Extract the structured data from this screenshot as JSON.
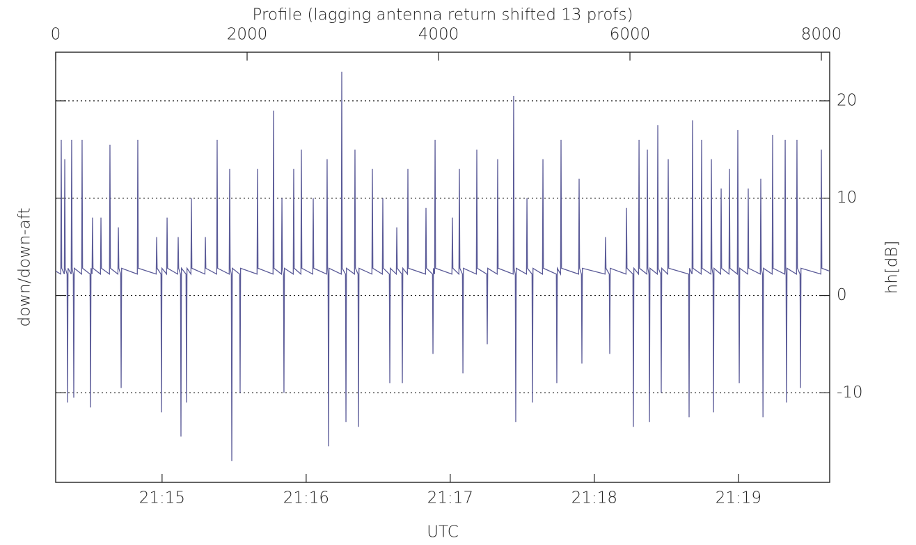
{
  "chart_data": {
    "type": "line",
    "title": "Profile (lagging antenna return shifted 13 profs)",
    "x_label": "UTC",
    "y_label": "down/down-aft",
    "y2_label": "hh[dB]",
    "xlim": [
      0,
      8087
    ],
    "xticks": [
      0,
      2000,
      4000,
      6000,
      8000
    ],
    "time_lim": [
      76455.7,
      76778
    ],
    "time_ticks": [
      {
        "value": 76500,
        "label": "21:15"
      },
      {
        "value": 76560,
        "label": "21:16"
      },
      {
        "value": 76620,
        "label": "21:17"
      },
      {
        "value": 76680,
        "label": "21:18"
      },
      {
        "value": 76740,
        "label": "21:19"
      }
    ],
    "ylim": [
      -19.2,
      25
    ],
    "yticks": [
      -10,
      0,
      10,
      20
    ],
    "grid": true,
    "x": [
      0,
      53,
      58,
      63,
      90,
      95,
      100,
      119,
      124,
      129,
      162,
      167,
      172,
      184,
      189,
      194,
      271,
      276,
      281,
      359,
      364,
      369,
      380,
      385,
      390,
      468,
      473,
      478,
      562,
      567,
      572,
      650,
      655,
      660,
      679,
      684,
      689,
      853,
      858,
      863,
      1050,
      1055,
      1060,
      1100,
      1105,
      1110,
      1159,
      1164,
      1169,
      1275,
      1280,
      1285,
      1304,
      1309,
      1314,
      1362,
      1367,
      1372,
      1413,
      1418,
      1423,
      1559,
      1564,
      1569,
      1682,
      1687,
      1692,
      1813,
      1818,
      1823,
      1835,
      1840,
      1845,
      1922,
      1927,
      1932,
      2104,
      2109,
      2114,
      2271,
      2276,
      2281,
      2359,
      2364,
      2369,
      2380,
      2385,
      2390,
      2482,
      2487,
      2492,
      2562,
      2567,
      2572,
      2686,
      2691,
      2696,
      2831,
      2836,
      2841,
      2846,
      2851,
      2856,
      2984,
      2989,
      2994,
      3028,
      3033,
      3038,
      3122,
      3127,
      3132,
      3159,
      3164,
      3169,
      3304,
      3309,
      3314,
      3413,
      3418,
      3423,
      3486,
      3491,
      3496,
      3559,
      3564,
      3569,
      3617,
      3622,
      3627,
      3675,
      3680,
      3685,
      3864,
      3869,
      3874,
      3937,
      3942,
      3947,
      3959,
      3964,
      3969,
      4140,
      4145,
      4150,
      4213,
      4218,
      4223,
      4250,
      4255,
      4260,
      4395,
      4400,
      4405,
      4504,
      4509,
      4514,
      4613,
      4618,
      4623,
      4780,
      4785,
      4790,
      4802,
      4807,
      4812,
      4919,
      4924,
      4929,
      4977,
      4982,
      4987,
      5086,
      5091,
      5096,
      5231,
      5236,
      5241,
      5275,
      5280,
      5285,
      5464,
      5469,
      5474,
      5493,
      5498,
      5503,
      5740,
      5745,
      5750,
      5784,
      5789,
      5794,
      5959,
      5964,
      5969,
      6031,
      6036,
      6041,
      6090,
      6095,
      6100,
      6177,
      6182,
      6187,
      6199,
      6204,
      6209,
      6286,
      6291,
      6296,
      6322,
      6327,
      6332,
      6395,
      6400,
      6405,
      6613,
      6618,
      6623,
      6649,
      6654,
      6659,
      6744,
      6749,
      6754,
      6846,
      6851,
      6856,
      6868,
      6873,
      6878,
      6948,
      6953,
      6958,
      7035,
      7040,
      7045,
      7122,
      7127,
      7132,
      7137,
      7142,
      7147,
      7231,
      7236,
      7241,
      7362,
      7367,
      7372,
      7385,
      7390,
      7395,
      7486,
      7491,
      7496,
      7617,
      7622,
      7627,
      7631,
      7636,
      7641,
      7740,
      7745,
      7750,
      7777,
      7782,
      7787,
      7995,
      8000,
      8005,
      8087
    ],
    "series": [
      {
        "color": "#5b5b98",
        "values": [
          2.5,
          2.2,
          16,
          2.8,
          2.2,
          14,
          2.8,
          2.2,
          -11,
          2.8,
          2.2,
          16,
          2.8,
          2.2,
          -10.5,
          2.8,
          2.2,
          16,
          2.8,
          2.2,
          -11.5,
          2.8,
          2.2,
          8,
          2.8,
          2.2,
          8,
          2.8,
          2.2,
          15.5,
          2.8,
          2.2,
          7,
          2.8,
          2.2,
          -9.5,
          2.8,
          2.2,
          16,
          2.8,
          2.2,
          6,
          2.8,
          2.2,
          -12,
          2.8,
          2.2,
          8,
          2.8,
          2.2,
          6,
          2.8,
          2.2,
          -14.5,
          2.8,
          2.2,
          -11,
          2.8,
          2.2,
          10,
          2.8,
          2.2,
          6,
          2.8,
          2.2,
          16,
          2.8,
          2.2,
          13,
          2.8,
          2.2,
          -17,
          2.8,
          2.2,
          -10,
          2.8,
          2.2,
          13,
          2.8,
          2.2,
          19,
          2.8,
          2.2,
          10,
          2.8,
          2.2,
          -10,
          2.8,
          2.2,
          13,
          2.8,
          2.2,
          15,
          2.8,
          2.2,
          10,
          2.8,
          2.2,
          14,
          2.8,
          2.2,
          -15.5,
          2.8,
          2.2,
          23,
          2.8,
          2.2,
          -13,
          2.8,
          2.2,
          15,
          2.8,
          2.2,
          -13.5,
          2.8,
          2.2,
          13,
          2.8,
          2.2,
          10,
          2.8,
          2.2,
          -9,
          2.8,
          2.2,
          7,
          2.8,
          2.2,
          -9,
          2.8,
          2.2,
          13,
          2.8,
          2.2,
          9,
          2.8,
          2.2,
          -6,
          2.8,
          2.2,
          16,
          2.8,
          2.2,
          8,
          2.8,
          2.2,
          13,
          2.8,
          2.2,
          -8,
          2.8,
          2.2,
          15,
          2.8,
          2.2,
          -5,
          2.8,
          2.2,
          14,
          2.8,
          2.2,
          20.5,
          2.8,
          2.2,
          -13,
          2.8,
          2.2,
          10,
          2.8,
          2.2,
          -11,
          2.8,
          2.2,
          14,
          2.8,
          2.2,
          -9,
          2.8,
          2.2,
          16,
          2.8,
          2.2,
          12,
          2.8,
          2.2,
          -7,
          2.8,
          2.2,
          6,
          2.8,
          2.2,
          -6,
          2.8,
          2.2,
          9,
          2.8,
          2.2,
          -13.5,
          2.8,
          2.2,
          16,
          2.8,
          2.2,
          15,
          2.8,
          2.2,
          -13,
          2.8,
          2.2,
          17.5,
          2.8,
          2.2,
          -10,
          2.8,
          2.2,
          14,
          2.8,
          2.2,
          -12.5,
          2.8,
          2.2,
          18,
          2.8,
          2.2,
          16,
          2.8,
          2.2,
          14,
          2.8,
          2.2,
          -12,
          2.8,
          2.2,
          11,
          2.8,
          2.2,
          13,
          2.8,
          2.2,
          17,
          2.8,
          2.2,
          -9,
          2.8,
          2.2,
          11,
          2.8,
          2.2,
          12,
          2.8,
          2.2,
          -12.5,
          2.8,
          2.2,
          16.5,
          2.8,
          2.2,
          16,
          2.8,
          2.2,
          -11,
          2.8,
          2.2,
          16,
          2.8,
          2.2,
          -9.5,
          2.8,
          2.2,
          15,
          2.8,
          2.5
        ]
      }
    ]
  }
}
